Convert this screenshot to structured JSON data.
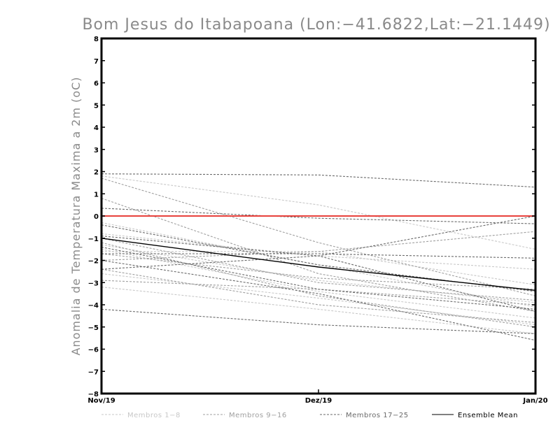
{
  "chart_data": {
    "type": "line",
    "title": "Bom Jesus do Itabapoana (Lon:−41.6822,Lat:−21.1449)",
    "ylabel": "Anomalia de Temperatura Maxima a 2m (oC)",
    "xlabel": "",
    "categories": [
      "Nov/19",
      "Dez/19",
      "Jan/20"
    ],
    "ylim": [
      -8,
      8
    ],
    "yticks": [
      -8,
      -7,
      -6,
      -5,
      -4,
      -3,
      -2,
      -1,
      0,
      1,
      2,
      3,
      4,
      5,
      6,
      7,
      8
    ],
    "ytick_labels": [
      "−8",
      "−7",
      "−6",
      "−5",
      "−4",
      "−3",
      "−2",
      "−1",
      "0",
      "1",
      "2",
      "3",
      "4",
      "5",
      "6",
      "7",
      "8"
    ],
    "grid": false,
    "legend": {
      "position": "bottom",
      "entries": [
        {
          "label": "Membros 1−8",
          "color": "#c8c8c8",
          "dash": "3,2"
        },
        {
          "label": "Membros 9−16",
          "color": "#a0a0a0",
          "dash": "3,2"
        },
        {
          "label": "Membros 17−25",
          "color": "#6a6a6a",
          "dash": "3,2"
        },
        {
          "label": "Ensemble Mean",
          "color": "#000000",
          "dash": ""
        }
      ]
    },
    "reference_line": {
      "y": 0,
      "color": "#e8413c"
    },
    "series": [
      {
        "group": 0,
        "values": [
          1.8,
          0.5,
          -1.5
        ]
      },
      {
        "group": 0,
        "values": [
          -0.8,
          -1.8,
          -2.4
        ]
      },
      {
        "group": 0,
        "values": [
          -1.3,
          -2.9,
          -3.9
        ]
      },
      {
        "group": 0,
        "values": [
          -1.5,
          -3.4,
          -4.6
        ]
      },
      {
        "group": 0,
        "values": [
          -2.6,
          -3.7,
          -4.9
        ]
      },
      {
        "group": 0,
        "values": [
          -3.2,
          -4.2,
          -5.3
        ]
      },
      {
        "group": 0,
        "values": [
          -0.3,
          -2.2,
          -4.1
        ]
      },
      {
        "group": 0,
        "values": [
          -1.6,
          -1.6,
          -3.1
        ]
      },
      {
        "group": 1,
        "values": [
          1.7,
          -1.2,
          -3.6
        ]
      },
      {
        "group": 1,
        "values": [
          0.8,
          -2.6,
          -4.3
        ]
      },
      {
        "group": 1,
        "values": [
          -1.0,
          -3.0,
          -3.8
        ]
      },
      {
        "group": 1,
        "values": [
          -1.2,
          -3.6,
          -5.0
        ]
      },
      {
        "group": 1,
        "values": [
          -2.0,
          -1.6,
          -0.7
        ]
      },
      {
        "group": 1,
        "values": [
          -2.4,
          -4.0,
          -4.8
        ]
      },
      {
        "group": 1,
        "values": [
          -1.7,
          -2.8,
          -3.3
        ]
      },
      {
        "group": 1,
        "values": [
          -2.9,
          -3.3,
          -4.0
        ]
      },
      {
        "group": 2,
        "values": [
          1.9,
          1.85,
          1.3
        ]
      },
      {
        "group": 2,
        "values": [
          0.35,
          -0.1,
          -0.35
        ]
      },
      {
        "group": 2,
        "values": [
          -0.4,
          -2.2,
          -3.4
        ]
      },
      {
        "group": 2,
        "values": [
          -0.9,
          -1.8,
          -4.3
        ]
      },
      {
        "group": 2,
        "values": [
          -1.7,
          -1.7,
          -1.9
        ]
      },
      {
        "group": 2,
        "values": [
          -2.4,
          -1.8,
          0.0
        ]
      },
      {
        "group": 2,
        "values": [
          -1.4,
          -3.3,
          -4.2
        ]
      },
      {
        "group": 2,
        "values": [
          -2.0,
          -3.5,
          -5.6
        ]
      },
      {
        "group": 2,
        "values": [
          -4.2,
          -4.9,
          -5.3
        ]
      },
      {
        "group": 3,
        "values": [
          -1.0,
          -2.3,
          -3.35
        ]
      }
    ]
  }
}
